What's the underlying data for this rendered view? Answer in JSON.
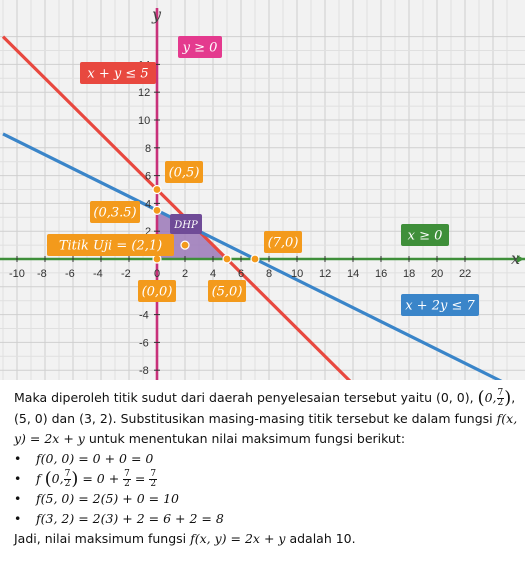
{
  "chart_data": {
    "type": "line",
    "x_axis_name": "x",
    "y_axis_name": "y",
    "xlim": [
      -11,
      25
    ],
    "ylim": [
      -8.5,
      16.5
    ],
    "x_ticks": [
      "-10",
      "-8",
      "-6",
      "-4",
      "-2",
      "0",
      "2",
      "4",
      "6",
      "8",
      "10",
      "12",
      "14",
      "16",
      "18",
      "20",
      "22"
    ],
    "y_ticks": [
      "-8",
      "-6",
      "-4",
      "-2",
      "2",
      "4",
      "6",
      "8",
      "10",
      "12",
      "14"
    ],
    "lines": [
      {
        "name": "x + y ≤ 5",
        "slope": -1,
        "intercept": 5,
        "color": "#e8483f"
      },
      {
        "name": "x + 2y ≤ 7",
        "slope": -0.5,
        "intercept": 3.5,
        "color": "#3a85c9"
      },
      {
        "name": "x ≥ 0",
        "vertical_x": 0,
        "color": "#c8317a"
      },
      {
        "name": "y ≥ 0",
        "horizontal_y": 0,
        "color": "#3f8f3a"
      }
    ],
    "region": {
      "name": "DHP",
      "vertices": [
        [
          0,
          0
        ],
        [
          0,
          3.5
        ],
        [
          3,
          2
        ],
        [
          5,
          0
        ]
      ],
      "color": "#9b78b8"
    },
    "points": [
      {
        "label": "(0,5)",
        "x": 0,
        "y": 5
      },
      {
        "label": "(0,3.5)",
        "x": 0,
        "y": 3.5
      },
      {
        "label": "Titik Uji = (2,1)",
        "x": 2,
        "y": 1
      },
      {
        "label": "(0,0)",
        "x": 0,
        "y": 0
      },
      {
        "label": "(5,0)",
        "x": 5,
        "y": 0
      },
      {
        "label": "(7,0)",
        "x": 7,
        "y": 0
      }
    ],
    "constraint_labels": [
      {
        "text": "y ≥ 0",
        "color": "#e43a8e"
      },
      {
        "text": "x + y ≤ 5",
        "color": "#e8483f"
      },
      {
        "text": "x ≥ 0",
        "color": "#3f8f3a"
      },
      {
        "text": "x + 2y ≤ 7",
        "color": "#3a85c9"
      }
    ],
    "point_label_color": "#f39a1c",
    "grid": true
  },
  "text": {
    "p1_a": "Maka diperoleh titik sudut dari daerah penyelesaian tersebut yaitu (0, 0),",
    "p1_frac_a": "0,",
    "p1_frac_num": "7",
    "p1_frac_den": "2",
    "p1_b": "(5, 0) dan (3, 2). Substitusikan masing-masing titik tersebut ke dalam fungsi",
    "p1_func": "f(x, y) = 2x + y",
    "p1_c": " untuk menentukan nilai maksimum fungsi berikut:",
    "item1": "f(0, 0) = 0 + 0 = 0",
    "item2_a": "f",
    "item2_b": "0,",
    "item2_num": "7",
    "item2_den": "2",
    "item2_c": " = 0 + ",
    "item2_d": " = ",
    "item3": "f(5, 0) = 2(5) + 0 = 10",
    "item4": "f(3, 2) = 2(3) + 2 = 6 + 2 = 8",
    "concl_a": "Jadi, nilai maksimum fungsi ",
    "concl_func": "f(x, y)  = 2x + y",
    "concl_b": " adalah 10."
  }
}
